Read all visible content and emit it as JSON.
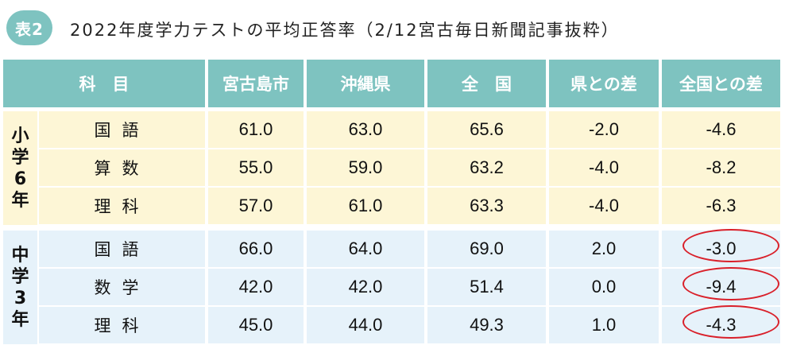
{
  "badge": "表2",
  "title": "2022年度学力テストの平均正答率（2/12宮古毎日新聞記事抜粋）",
  "headers": [
    "科　目",
    "宮古島市",
    "沖縄県",
    "全　国",
    "県との差",
    "全国との差"
  ],
  "groups": [
    {
      "label": "小学6年",
      "rows": [
        {
          "subject": "国語",
          "city": "61.0",
          "pref": "63.0",
          "nation": "65.6",
          "diff_pref": "-2.0",
          "diff_nation": "-4.6"
        },
        {
          "subject": "算数",
          "city": "55.0",
          "pref": "59.0",
          "nation": "63.2",
          "diff_pref": "-4.0",
          "diff_nation": "-8.2"
        },
        {
          "subject": "理科",
          "city": "57.0",
          "pref": "61.0",
          "nation": "63.3",
          "diff_pref": "-4.0",
          "diff_nation": "-6.3"
        }
      ]
    },
    {
      "label": "中学3年",
      "rows": [
        {
          "subject": "国語",
          "city": "66.0",
          "pref": "64.0",
          "nation": "69.0",
          "diff_pref": "2.0",
          "diff_nation": "-3.0"
        },
        {
          "subject": "数学",
          "city": "42.0",
          "pref": "42.0",
          "nation": "51.4",
          "diff_pref": "0.0",
          "diff_nation": "-9.4"
        },
        {
          "subject": "理科",
          "city": "45.0",
          "pref": "44.0",
          "nation": "49.3",
          "diff_pref": "1.0",
          "diff_nation": "-4.3"
        }
      ]
    }
  ],
  "colors": {
    "header": "#7ec3c0",
    "elementary_bg": "#fdf6d6",
    "junior_bg": "#e6f2fa",
    "highlight_ring": "#d9202a"
  }
}
